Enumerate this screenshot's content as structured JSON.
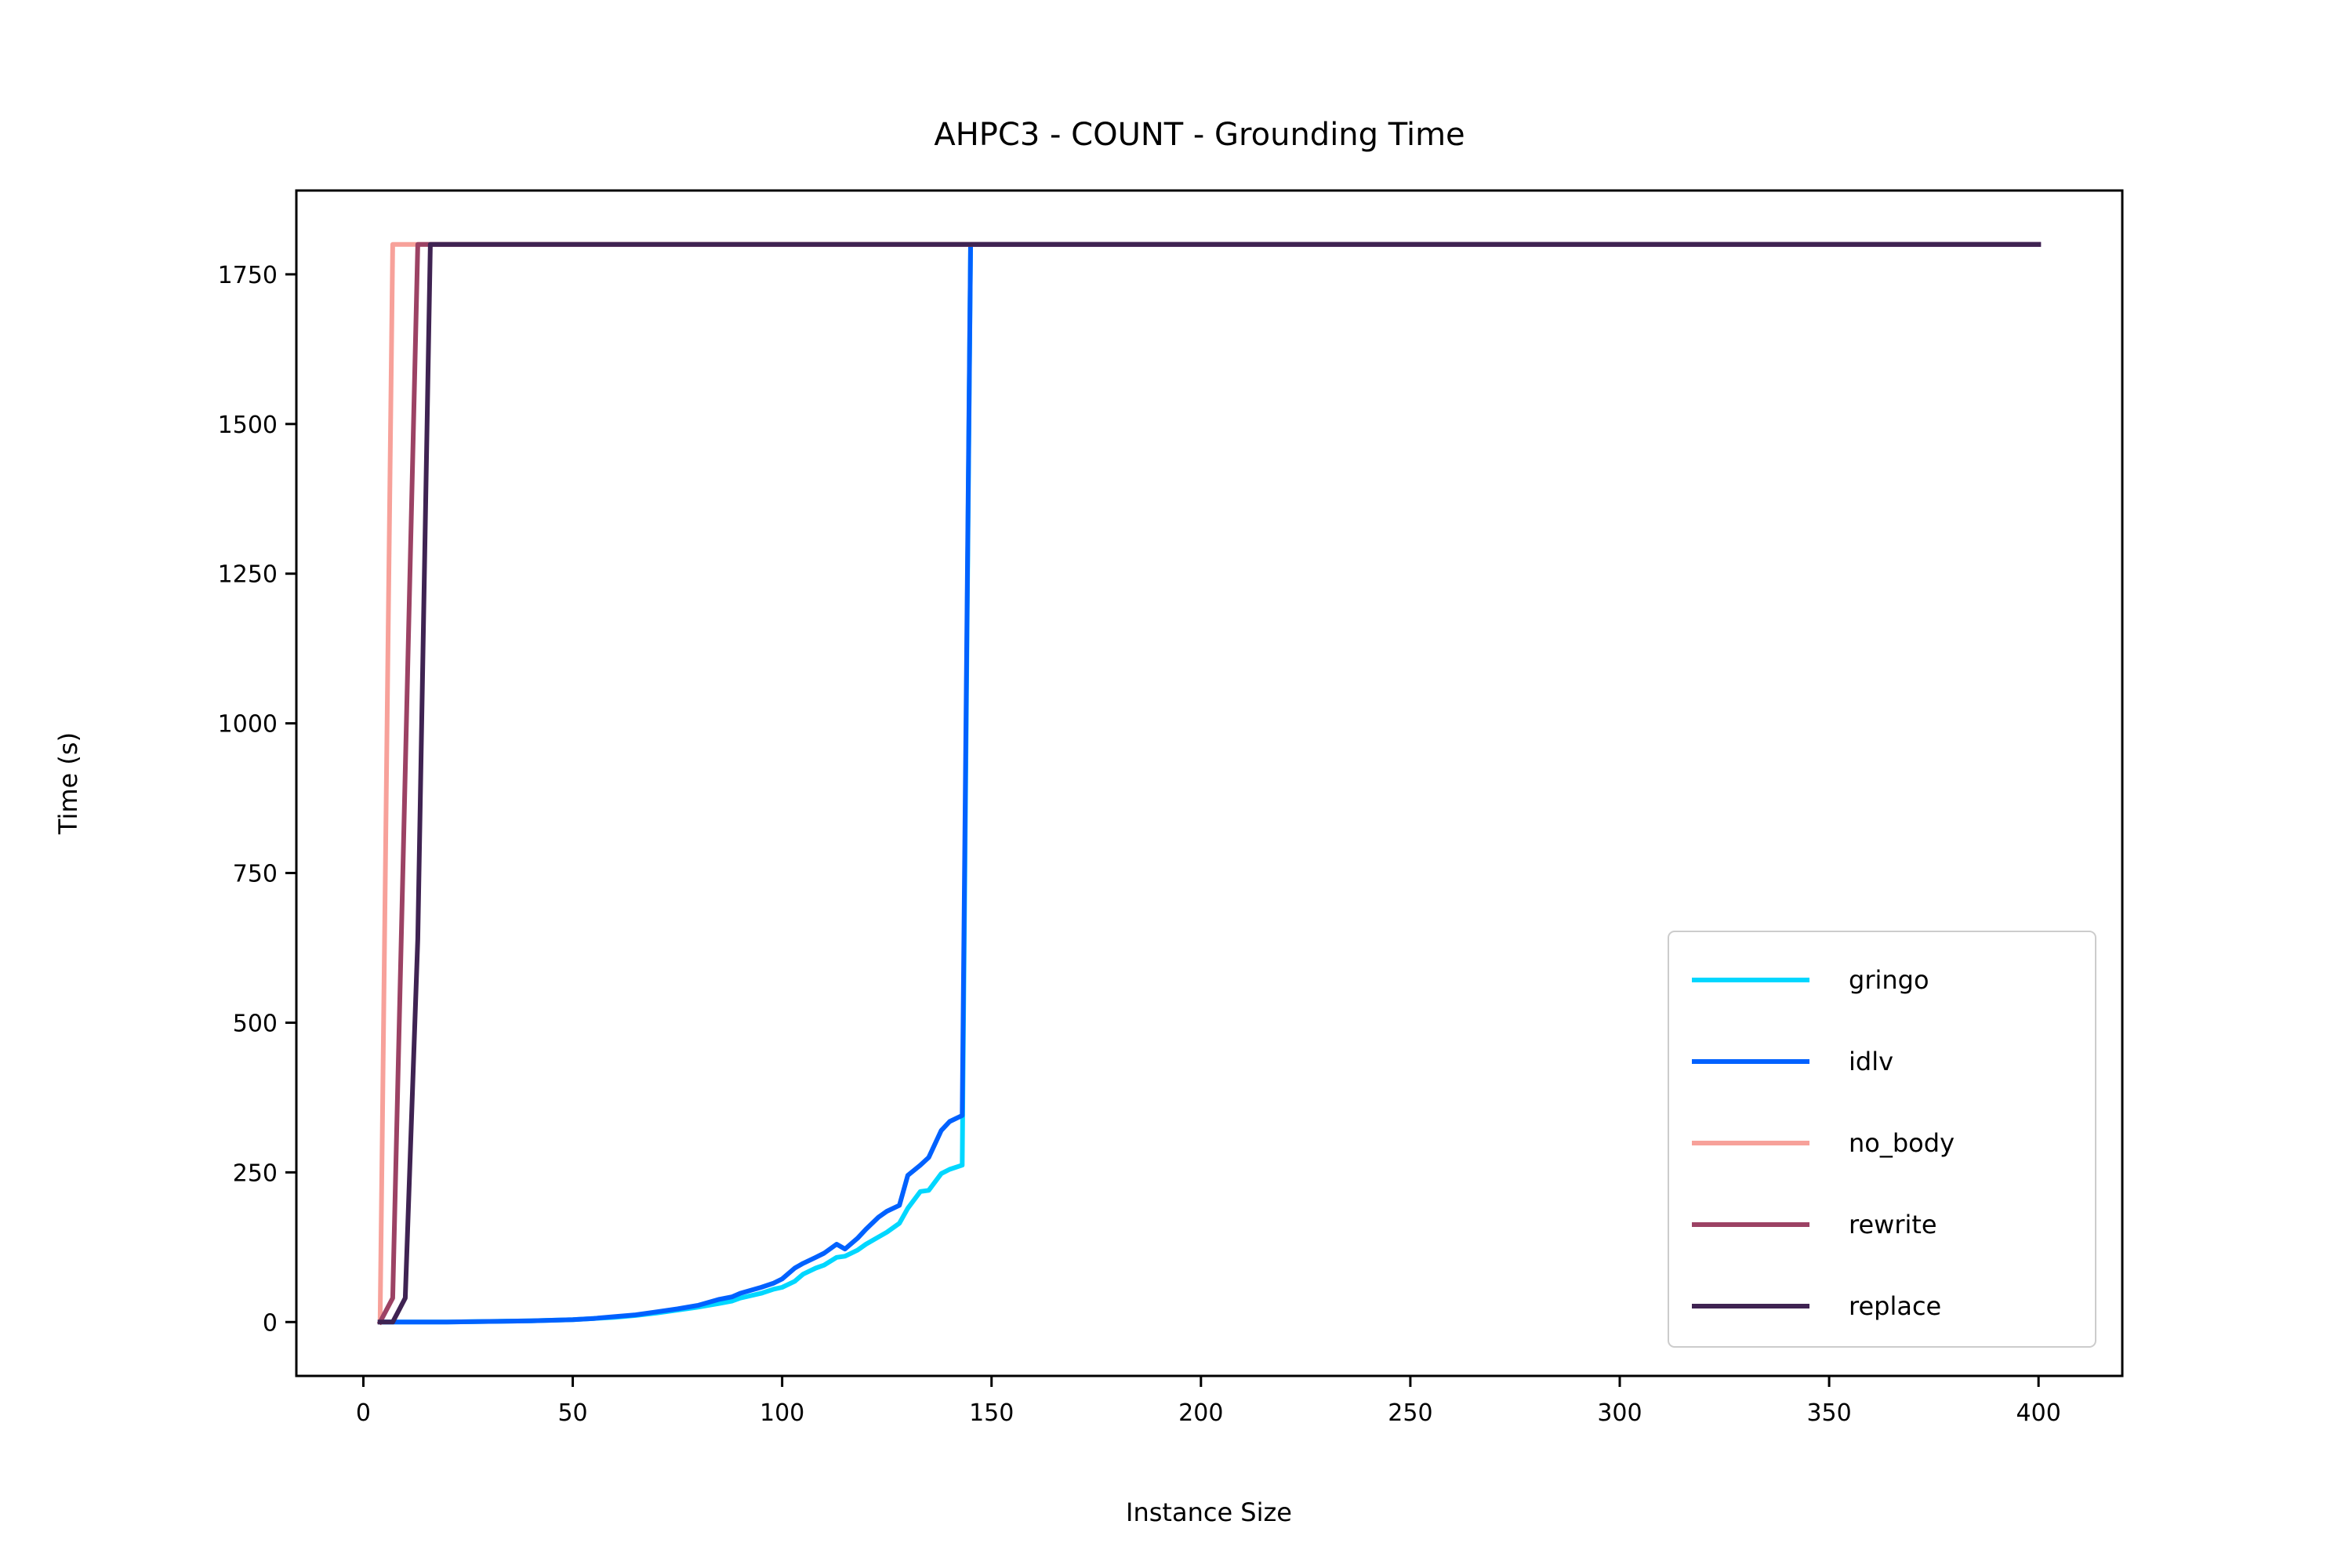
{
  "chart_data": {
    "type": "line",
    "title": "AHPC3 - COUNT - Grounding Time",
    "xlabel": "Instance Size",
    "ylabel": "Time (s)",
    "xlim": [
      -16,
      420
    ],
    "ylim": [
      -90,
      1890
    ],
    "xticks": [
      0,
      50,
      100,
      150,
      200,
      250,
      300,
      350,
      400
    ],
    "yticks": [
      0,
      250,
      500,
      750,
      1000,
      1250,
      1500,
      1750
    ],
    "grid": false,
    "legend_position": "lower-right",
    "series": [
      {
        "name": "gringo",
        "color": "#00d7ff",
        "x": [
          4,
          10,
          20,
          30,
          40,
          50,
          55,
          60,
          65,
          70,
          75,
          80,
          85,
          88,
          90,
          95,
          98,
          100,
          103,
          105,
          108,
          110,
          113,
          115,
          118,
          120,
          123,
          125,
          128,
          130,
          133,
          135,
          138,
          140,
          143,
          145,
          400
        ],
        "y": [
          0,
          0,
          0,
          1,
          2,
          4,
          6,
          8,
          11,
          15,
          20,
          25,
          31,
          35,
          40,
          48,
          55,
          58,
          68,
          80,
          90,
          95,
          108,
          110,
          120,
          130,
          142,
          150,
          165,
          190,
          218,
          220,
          248,
          255,
          262,
          1800,
          1800
        ]
      },
      {
        "name": "idlv",
        "color": "#0061ff",
        "x": [
          4,
          10,
          20,
          30,
          40,
          50,
          55,
          60,
          65,
          70,
          75,
          80,
          85,
          88,
          90,
          95,
          98,
          100,
          103,
          105,
          108,
          110,
          113,
          115,
          118,
          120,
          123,
          125,
          128,
          130,
          133,
          135,
          138,
          140,
          143,
          145,
          400
        ],
        "y": [
          0,
          0,
          0,
          1,
          2,
          4,
          6,
          9,
          12,
          17,
          22,
          28,
          38,
          42,
          48,
          58,
          65,
          72,
          90,
          98,
          108,
          115,
          130,
          122,
          140,
          155,
          175,
          185,
          195,
          245,
          262,
          275,
          320,
          335,
          345,
          1800,
          1800
        ]
      },
      {
        "name": "no_body",
        "color": "#f7a19a",
        "x": [
          4,
          7,
          400
        ],
        "y": [
          0,
          1800,
          1800
        ]
      },
      {
        "name": "rewrite",
        "color": "#9c4264",
        "x": [
          4,
          7,
          13,
          400
        ],
        "y": [
          0,
          40,
          1800,
          1800
        ]
      },
      {
        "name": "replace",
        "color": "#3f2352",
        "x": [
          4,
          7,
          10,
          13,
          16,
          400
        ],
        "y": [
          0,
          0,
          40,
          640,
          1800,
          1800
        ]
      }
    ]
  }
}
